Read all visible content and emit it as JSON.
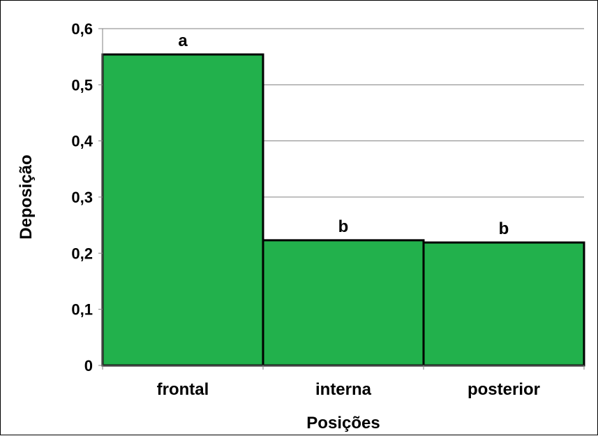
{
  "chart_data": {
    "type": "bar",
    "categories": [
      "frontal",
      "interna",
      "posterior"
    ],
    "values": [
      0.554,
      0.223,
      0.219
    ],
    "bar_labels": [
      "a",
      "b",
      "b"
    ],
    "xlabel": "Posições",
    "ylabel": "Deposição",
    "ylim": [
      0,
      0.6
    ],
    "yticks": [
      0,
      0.1,
      0.2,
      0.3,
      0.4,
      0.5,
      0.6
    ],
    "ytick_labels": [
      "0",
      "0,1",
      "0,2",
      "0,3",
      "0,4",
      "0,5",
      "0,6"
    ],
    "grid": true,
    "legend": "none",
    "colors": {
      "bar_fill": "#22B14C",
      "bar_stroke": "#000000",
      "grid": "#808080",
      "axis": "#808080"
    }
  }
}
